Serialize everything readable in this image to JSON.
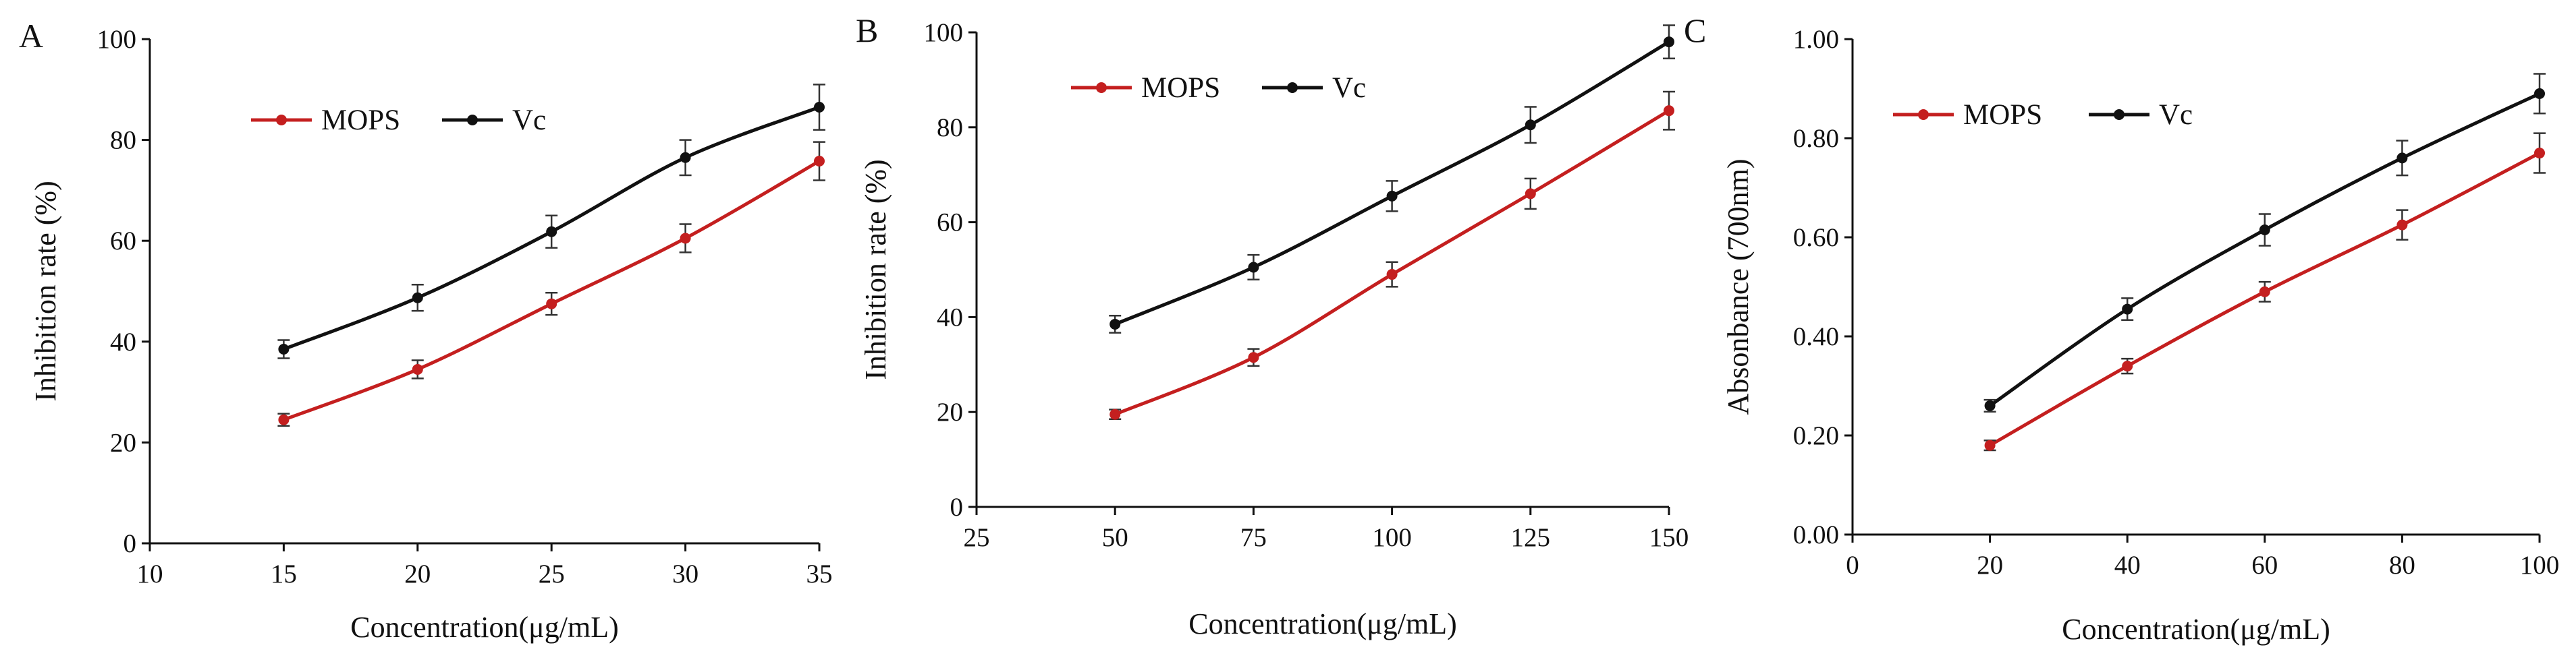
{
  "colors": {
    "MOPS": "#c41f1f",
    "Vc": "#111111",
    "axis": "#111111"
  },
  "chart_data": [
    {
      "type": "line",
      "panel": "A",
      "xlabel": "Concentration(μg/mL)",
      "ylabel": "Inhibition rate (%)",
      "xlim": [
        10,
        35
      ],
      "ylim": [
        0,
        100
      ],
      "xticks": [
        10,
        15,
        20,
        25,
        30,
        35
      ],
      "yticks": [
        0,
        20,
        40,
        60,
        80,
        100
      ],
      "x_tick_labels": [
        "10",
        "15",
        "20",
        "25",
        "30",
        "35"
      ],
      "y_tick_labels": [
        "0",
        "20",
        "40",
        "60",
        "80",
        "100"
      ],
      "legend_position": "upper-left",
      "x": [
        15,
        20,
        25,
        30,
        35
      ],
      "series": [
        {
          "name": "MOPS",
          "values": [
            24.5,
            34.5,
            47.5,
            60.5,
            75.8
          ],
          "errors": [
            1.2,
            1.8,
            2.2,
            2.8,
            3.8
          ]
        },
        {
          "name": "Vc",
          "values": [
            38.5,
            48.7,
            61.8,
            76.5,
            86.5
          ],
          "errors": [
            1.8,
            2.6,
            3.2,
            3.5,
            4.5
          ]
        }
      ]
    },
    {
      "type": "line",
      "panel": "B",
      "xlabel": "Concentration(μg/mL)",
      "ylabel": "Inhibition rate (%)",
      "xlim": [
        25,
        150
      ],
      "ylim": [
        0,
        100
      ],
      "xticks": [
        25,
        50,
        75,
        100,
        125,
        150
      ],
      "yticks": [
        0,
        20,
        40,
        60,
        80,
        100
      ],
      "x_tick_labels": [
        "25",
        "50",
        "75",
        "100",
        "125",
        "150"
      ],
      "y_tick_labels": [
        "0",
        "20",
        "40",
        "60",
        "80",
        "100"
      ],
      "legend_position": "upper-left",
      "x": [
        50,
        75,
        100,
        125,
        150
      ],
      "series": [
        {
          "name": "MOPS",
          "values": [
            19.5,
            31.5,
            49.0,
            66.0,
            83.5
          ],
          "errors": [
            1.0,
            1.8,
            2.6,
            3.2,
            4.0
          ]
        },
        {
          "name": "Vc",
          "values": [
            38.5,
            50.5,
            65.5,
            80.5,
            98.0
          ],
          "errors": [
            1.8,
            2.6,
            3.2,
            3.8,
            3.5
          ]
        }
      ]
    },
    {
      "type": "line",
      "panel": "C",
      "xlabel": "Concentration(μg/mL)",
      "ylabel": "Absonbance (700nm)",
      "xlim": [
        0,
        100
      ],
      "ylim": [
        0,
        1
      ],
      "xticks": [
        0,
        20,
        40,
        60,
        80,
        100
      ],
      "yticks": [
        0,
        0.2,
        0.4,
        0.6,
        0.8,
        1.0
      ],
      "x_tick_labels": [
        "0",
        "20",
        "40",
        "60",
        "80",
        "100"
      ],
      "y_tick_labels": [
        "0.00",
        "0.20",
        "0.40",
        "0.60",
        "0.80",
        "1.00"
      ],
      "legend_position": "upper-left",
      "x": [
        20,
        40,
        60,
        80,
        100
      ],
      "series": [
        {
          "name": "MOPS",
          "values": [
            0.18,
            0.34,
            0.49,
            0.625,
            0.77
          ],
          "errors": [
            0.01,
            0.015,
            0.02,
            0.03,
            0.04
          ]
        },
        {
          "name": "Vc",
          "values": [
            0.26,
            0.455,
            0.615,
            0.76,
            0.89
          ],
          "errors": [
            0.012,
            0.022,
            0.032,
            0.035,
            0.04
          ]
        }
      ]
    }
  ]
}
